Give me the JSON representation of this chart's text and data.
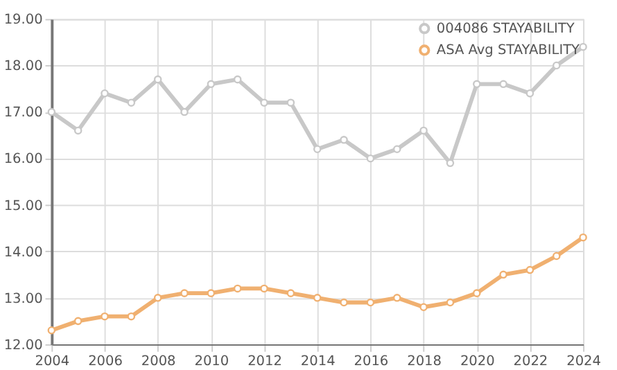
{
  "chart_data": {
    "type": "line",
    "x": [
      2004,
      2005,
      2006,
      2007,
      2008,
      2009,
      2010,
      2011,
      2012,
      2013,
      2014,
      2015,
      2016,
      2017,
      2018,
      2019,
      2020,
      2021,
      2022,
      2023,
      2024
    ],
    "series": [
      {
        "name": "004086 STAYABILITY",
        "color": "#c8c8c8",
        "values": [
          17.0,
          16.6,
          17.4,
          17.2,
          17.7,
          17.0,
          17.6,
          17.7,
          17.2,
          17.2,
          16.2,
          16.4,
          16.0,
          16.2,
          16.6,
          15.9,
          17.6,
          17.6,
          17.4,
          18.0,
          18.4
        ]
      },
      {
        "name": "ASA Avg STAYABILITY",
        "color": "#f0b070",
        "values": [
          12.3,
          12.5,
          12.6,
          12.6,
          13.0,
          13.1,
          13.1,
          13.2,
          13.2,
          13.1,
          13.0,
          12.9,
          12.9,
          13.0,
          12.8,
          12.9,
          13.1,
          13.5,
          13.6,
          13.9,
          14.3
        ]
      }
    ],
    "xlim": [
      2004,
      2024
    ],
    "xticks": [
      2004,
      2006,
      2008,
      2010,
      2012,
      2014,
      2016,
      2018,
      2020,
      2022,
      2024
    ],
    "ylim": [
      12,
      19
    ],
    "yticks": [
      {
        "value": 12,
        "label": "12.00"
      },
      {
        "value": 13,
        "label": "13.00"
      },
      {
        "value": 14,
        "label": "14.00"
      },
      {
        "value": 15,
        "label": "15.00"
      },
      {
        "value": 16,
        "label": "16.00"
      },
      {
        "value": 17,
        "label": "17.00"
      },
      {
        "value": 18,
        "label": "18.00"
      },
      {
        "value": 19,
        "label": "19.00"
      }
    ],
    "grid": true,
    "legend": "top right",
    "marker": "circle",
    "line_style": "solid"
  }
}
